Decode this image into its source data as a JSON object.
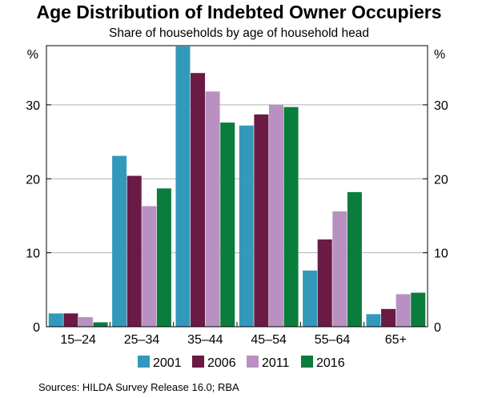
{
  "chart_data": {
    "type": "bar",
    "title": "Age Distribution of Indebted Owner Occupiers",
    "subtitle": "Share of households by age of household head",
    "ylabel": "%",
    "ylim": [
      0,
      38
    ],
    "yticks": [
      0,
      10,
      20,
      30
    ],
    "grid": true,
    "legend": "bottom",
    "categories": [
      "15–24",
      "25–34",
      "35–44",
      "45–54",
      "55–64",
      "65+"
    ],
    "series": [
      {
        "name": "2001",
        "color": "#3399bb",
        "values": [
          1.8,
          23.1,
          37.9,
          27.2,
          7.6,
          1.7
        ]
      },
      {
        "name": "2006",
        "color": "#6b1a45",
        "values": [
          1.8,
          20.4,
          34.3,
          28.7,
          11.8,
          2.4
        ]
      },
      {
        "name": "2011",
        "color": "#b891c2",
        "values": [
          1.3,
          16.3,
          31.8,
          30.0,
          15.6,
          4.4
        ]
      },
      {
        "name": "2016",
        "color": "#0a7d3c",
        "values": [
          0.6,
          18.7,
          27.6,
          29.7,
          18.2,
          4.6
        ]
      }
    ],
    "source": "Sources:   HILDA Survey Release 16.0; RBA"
  }
}
